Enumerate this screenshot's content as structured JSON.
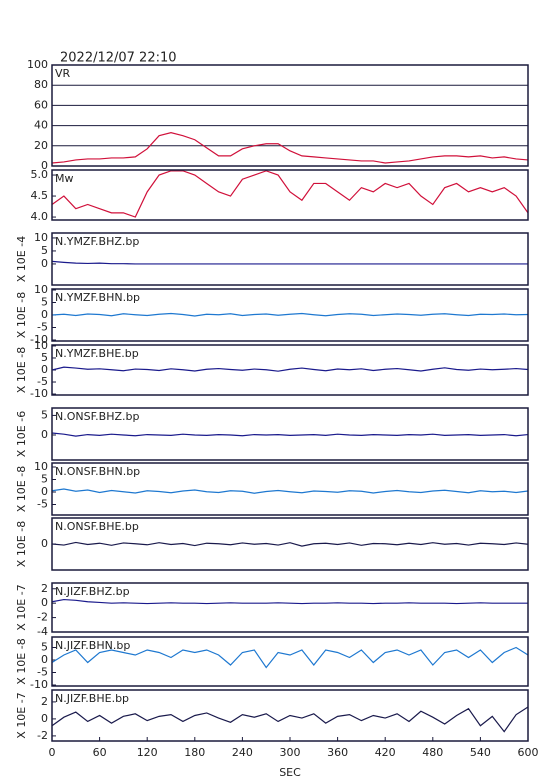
{
  "chart_data": [
    {
      "type": "line",
      "title": "2022/12/07 22:10",
      "label": "VR",
      "color": "#d0103a",
      "grid": true,
      "xlim": [
        0,
        600
      ],
      "ylim": [
        0,
        100
      ],
      "yticks": [
        0,
        20,
        40,
        60,
        80,
        100
      ],
      "x": [
        0,
        15,
        30,
        45,
        60,
        75,
        90,
        105,
        120,
        135,
        150,
        165,
        180,
        195,
        210,
        225,
        240,
        255,
        270,
        285,
        300,
        315,
        330,
        345,
        360,
        375,
        390,
        405,
        420,
        435,
        450,
        465,
        480,
        495,
        510,
        525,
        540,
        555,
        570,
        585,
        600
      ],
      "values": [
        3,
        4,
        6,
        7,
        7,
        8,
        8,
        9,
        17,
        30,
        33,
        30,
        26,
        18,
        10,
        10,
        17,
        20,
        22,
        22,
        15,
        10,
        9,
        8,
        7,
        6,
        5,
        5,
        3,
        4,
        5,
        7,
        9,
        10,
        10,
        9,
        10,
        8,
        9,
        7,
        6
      ]
    },
    {
      "type": "line",
      "label": "Mw",
      "color": "#d0103a",
      "xlim": [
        0,
        600
      ],
      "ylim": [
        3.93,
        5.12
      ],
      "yticks": [
        {
          "value": 4,
          "label": "4.0"
        },
        4.5,
        {
          "value": 5,
          "label": "5.0"
        }
      ],
      "x": [
        0,
        15,
        30,
        45,
        60,
        75,
        90,
        105,
        120,
        135,
        150,
        165,
        180,
        195,
        210,
        225,
        240,
        255,
        270,
        285,
        300,
        315,
        330,
        345,
        360,
        375,
        390,
        405,
        420,
        435,
        450,
        465,
        480,
        495,
        510,
        525,
        540,
        555,
        570,
        585,
        600
      ],
      "values": [
        4.3,
        4.5,
        4.2,
        4.3,
        4.2,
        4.1,
        4.1,
        4.0,
        4.6,
        5.0,
        5.1,
        5.1,
        5.0,
        4.8,
        4.6,
        4.5,
        4.9,
        5.0,
        5.1,
        5.0,
        4.6,
        4.4,
        4.8,
        4.8,
        4.6,
        4.4,
        4.7,
        4.6,
        4.8,
        4.7,
        4.8,
        4.5,
        4.3,
        4.7,
        4.8,
        4.6,
        4.7,
        4.6,
        4.7,
        4.5,
        4.1
      ]
    },
    {
      "type": "line",
      "label": "N.YMZF.BHZ.bp",
      "ylabel": "X 10E -4",
      "color": "#1a1a8c",
      "xlim": [
        0,
        600
      ],
      "ylim": [
        -8.1,
        11.9
      ],
      "yticks": [
        0,
        5,
        10
      ],
      "x": [
        0,
        15,
        30,
        45,
        60,
        75,
        90,
        105,
        120,
        135,
        150,
        165,
        180,
        195,
        210,
        225,
        240,
        255,
        270,
        285,
        300,
        315,
        330,
        345,
        360,
        375,
        390,
        405,
        420,
        435,
        450,
        465,
        480,
        495,
        510,
        525,
        540,
        555,
        570,
        585,
        600
      ],
      "values": [
        1,
        0.6,
        0.3,
        0.2,
        0.3,
        0.1,
        0.1,
        0,
        0,
        0,
        0,
        0,
        0,
        0,
        0,
        0,
        0,
        0,
        0,
        0,
        0,
        0,
        0,
        0,
        0,
        0,
        0,
        0,
        0,
        0,
        0,
        0,
        0,
        0,
        0,
        0,
        0,
        0,
        0,
        0,
        0
      ]
    },
    {
      "type": "line",
      "label": "N.YMZF.BHN.bp",
      "ylabel": "X 10E -8",
      "color": "#1e78d0",
      "xlim": [
        0,
        600
      ],
      "ylim": [
        -10.4,
        10.4
      ],
      "yticks": [
        -10,
        -5,
        0,
        5,
        10
      ],
      "x": [
        0,
        15,
        30,
        45,
        60,
        75,
        90,
        105,
        120,
        135,
        150,
        165,
        180,
        195,
        210,
        225,
        240,
        255,
        270,
        285,
        300,
        315,
        330,
        345,
        360,
        375,
        390,
        405,
        420,
        435,
        450,
        465,
        480,
        495,
        510,
        525,
        540,
        555,
        570,
        585,
        600
      ],
      "values": [
        0,
        0.3,
        -0.2,
        0.4,
        0.2,
        -0.3,
        0.5,
        0.1,
        -0.2,
        0.3,
        0.6,
        0.2,
        -0.4,
        0.3,
        0.1,
        0.5,
        -0.2,
        0.2,
        0.4,
        -0.1,
        0.3,
        0.6,
        0.1,
        -0.3,
        0.2,
        0.5,
        0.3,
        -0.2,
        0.1,
        0.4,
        0.2,
        -0.1,
        0.3,
        0.5,
        0.1,
        -0.2,
        0.3,
        0.2,
        0.4,
        0.1,
        0.2
      ]
    },
    {
      "type": "line",
      "label": "N.YMZF.BHE.bp",
      "ylabel": "X 10E -8",
      "color": "#1a1a8c",
      "xlim": [
        0,
        600
      ],
      "ylim": [
        -10.4,
        10.4
      ],
      "yticks": [
        -10,
        -5,
        0,
        5,
        10
      ],
      "x": [
        0,
        15,
        30,
        45,
        60,
        75,
        90,
        105,
        120,
        135,
        150,
        165,
        180,
        195,
        210,
        225,
        240,
        255,
        270,
        285,
        300,
        315,
        330,
        345,
        360,
        375,
        390,
        405,
        420,
        435,
        450,
        465,
        480,
        495,
        510,
        525,
        540,
        555,
        570,
        585,
        600
      ],
      "values": [
        0,
        1.2,
        0.8,
        0.3,
        0.5,
        0.1,
        -0.3,
        0.4,
        0.2,
        -0.2,
        0.5,
        0.1,
        -0.4,
        0.3,
        0.6,
        0.2,
        -0.1,
        0.4,
        0.1,
        -0.5,
        0.3,
        0.8,
        0.2,
        -0.3,
        0.4,
        0.1,
        0.5,
        -0.2,
        0.3,
        0.6,
        0.1,
        -0.4,
        0.3,
        0.9,
        0.2,
        -0.1,
        0.4,
        0.1,
        0.3,
        0.6,
        0.2
      ]
    },
    {
      "type": "line",
      "label": "N.ONSF.BHZ.bp",
      "ylabel": "X 10E -6",
      "color": "#1a1a8c",
      "xlim": [
        0,
        600
      ],
      "ylim": [
        -6.4,
        6.9
      ],
      "yticks": [
        0,
        5
      ],
      "x": [
        0,
        15,
        30,
        45,
        60,
        75,
        90,
        105,
        120,
        135,
        150,
        165,
        180,
        195,
        210,
        225,
        240,
        255,
        270,
        285,
        300,
        315,
        330,
        345,
        360,
        375,
        390,
        405,
        420,
        435,
        450,
        465,
        480,
        495,
        510,
        525,
        540,
        555,
        570,
        585,
        600
      ],
      "values": [
        0.5,
        0.2,
        -0.3,
        0.1,
        -0.1,
        0.2,
        0,
        -0.2,
        0.1,
        0,
        -0.1,
        0.2,
        0,
        -0.1,
        0.1,
        0,
        -0.2,
        0.1,
        0,
        0.1,
        -0.1,
        0,
        0.1,
        -0.1,
        0.2,
        0,
        -0.1,
        0.1,
        0,
        -0.1,
        0.1,
        0,
        0.2,
        -0.1,
        0,
        0.1,
        -0.1,
        0,
        0.1,
        -0.2,
        0.1
      ]
    },
    {
      "type": "line",
      "label": "N.ONSF.BHN.bp",
      "ylabel": "X 10E -8",
      "color": "#1e78d0",
      "xlim": [
        0,
        600
      ],
      "ylim": [
        -9.2,
        11.6
      ],
      "yticks": [
        -5,
        0,
        5,
        10
      ],
      "x": [
        0,
        15,
        30,
        45,
        60,
        75,
        90,
        105,
        120,
        135,
        150,
        165,
        180,
        195,
        210,
        225,
        240,
        255,
        270,
        285,
        300,
        315,
        330,
        345,
        360,
        375,
        390,
        405,
        420,
        435,
        450,
        465,
        480,
        495,
        510,
        525,
        540,
        555,
        570,
        585,
        600
      ],
      "values": [
        0.5,
        1.2,
        0.3,
        0.8,
        -0.2,
        0.6,
        0.1,
        -0.4,
        0.5,
        0.2,
        -0.3,
        0.4,
        0.8,
        0.1,
        -0.2,
        0.5,
        0.3,
        -0.5,
        0.2,
        0.6,
        0.1,
        -0.3,
        0.4,
        0.2,
        -0.1,
        0.5,
        0.3,
        -0.4,
        0.2,
        0.6,
        0.1,
        -0.2,
        0.4,
        0.7,
        0.2,
        -0.3,
        0.5,
        0.1,
        0.3,
        -0.2,
        0.4
      ]
    },
    {
      "type": "line",
      "label": "N.ONSF.BHE.bp",
      "ylabel": "X 10E -8",
      "color": "#1a1a4c",
      "xlim": [
        0,
        600
      ],
      "ylim": [
        -10,
        10
      ],
      "yticks": [
        0
      ],
      "x": [
        0,
        15,
        30,
        45,
        60,
        75,
        90,
        105,
        120,
        135,
        150,
        165,
        180,
        195,
        210,
        225,
        240,
        255,
        270,
        285,
        300,
        315,
        330,
        345,
        360,
        375,
        390,
        405,
        420,
        435,
        450,
        465,
        480,
        495,
        510,
        525,
        540,
        555,
        570,
        585,
        600
      ],
      "values": [
        0,
        -0.4,
        0.6,
        -0.2,
        0.3,
        -0.5,
        0.4,
        0.1,
        -0.3,
        0.5,
        -0.2,
        0.2,
        -0.6,
        0.3,
        0.1,
        -0.3,
        0.4,
        -0.1,
        0.2,
        -0.4,
        0.5,
        -0.8,
        0.1,
        0.3,
        -0.2,
        0.4,
        -0.5,
        0.2,
        0.1,
        -0.3,
        0.3,
        -0.2,
        0.5,
        -0.1,
        0.2,
        -0.4,
        0.3,
        0.1,
        -0.2,
        0.4,
        -0.1
      ]
    },
    {
      "type": "line",
      "label": "N.JIZF.BHZ.bp",
      "ylabel": "X 10E -7",
      "color": "#1a1a8c",
      "xlim": [
        0,
        600
      ],
      "ylim": [
        -4,
        2.8
      ],
      "yticks": [
        -4,
        -2,
        0,
        2
      ],
      "x": [
        0,
        15,
        30,
        45,
        60,
        75,
        90,
        105,
        120,
        135,
        150,
        165,
        180,
        195,
        210,
        225,
        240,
        255,
        270,
        285,
        300,
        315,
        330,
        345,
        360,
        375,
        390,
        405,
        420,
        435,
        450,
        465,
        480,
        495,
        510,
        525,
        540,
        555,
        570,
        585,
        600
      ],
      "values": [
        0.2,
        0.5,
        0.4,
        0.2,
        0.1,
        0,
        0.05,
        0,
        -0.05,
        0,
        0.05,
        0,
        0,
        -0.05,
        0,
        0.05,
        0,
        0,
        0,
        0.05,
        0,
        -0.05,
        0,
        0,
        0.05,
        0,
        0,
        -0.05,
        0,
        0,
        0.05,
        0,
        0,
        0,
        -0.05,
        0,
        0.05,
        0,
        0,
        0,
        0
      ]
    },
    {
      "type": "line",
      "label": "N.JIZF.BHN.bp",
      "ylabel": "X 10E -8",
      "color": "#1e78d0",
      "xlim": [
        0,
        600
      ],
      "ylim": [
        -10.4,
        9.2
      ],
      "yticks": [
        -10,
        -5,
        0,
        5
      ],
      "x": [
        0,
        15,
        30,
        45,
        60,
        75,
        90,
        105,
        120,
        135,
        150,
        165,
        180,
        195,
        210,
        225,
        240,
        255,
        270,
        285,
        300,
        315,
        330,
        345,
        360,
        375,
        390,
        405,
        420,
        435,
        450,
        465,
        480,
        495,
        510,
        525,
        540,
        555,
        570,
        585,
        600
      ],
      "values": [
        -1,
        2,
        4,
        -1,
        3,
        4,
        3,
        2,
        4,
        3,
        1,
        4,
        3,
        4,
        2,
        -2,
        3,
        4,
        -3,
        3,
        2,
        4,
        -2,
        4,
        3,
        1,
        4,
        -1,
        3,
        4,
        2,
        4,
        -2,
        3,
        4,
        1,
        4,
        -1,
        3,
        5,
        2
      ]
    },
    {
      "type": "line",
      "label": "N.JIZF.BHE.bp",
      "ylabel": "X 10E -7",
      "color": "#1a1a4c",
      "xlim": [
        0,
        600
      ],
      "ylim": [
        -2.6,
        3.4
      ],
      "yticks": [
        -2,
        0,
        2
      ],
      "xticks": [
        0,
        60,
        120,
        180,
        240,
        300,
        360,
        420,
        480,
        540,
        600
      ],
      "xlabel": "SEC",
      "x": [
        0,
        15,
        30,
        45,
        60,
        75,
        90,
        105,
        120,
        135,
        150,
        165,
        180,
        195,
        210,
        225,
        240,
        255,
        270,
        285,
        300,
        315,
        330,
        345,
        360,
        375,
        390,
        405,
        420,
        435,
        450,
        465,
        480,
        495,
        510,
        525,
        540,
        555,
        570,
        585,
        600
      ],
      "values": [
        -0.8,
        0.2,
        0.8,
        -0.3,
        0.4,
        -0.5,
        0.3,
        0.6,
        -0.2,
        0.3,
        0.5,
        -0.3,
        0.4,
        0.7,
        0.1,
        -0.4,
        0.5,
        0.2,
        0.6,
        -0.3,
        0.4,
        0.1,
        0.6,
        -0.5,
        0.3,
        0.5,
        -0.2,
        0.4,
        0.1,
        0.6,
        -0.3,
        0.9,
        0.2,
        -0.6,
        0.4,
        1.2,
        -0.8,
        0.3,
        -1.5,
        0.5,
        1.4
      ]
    }
  ]
}
